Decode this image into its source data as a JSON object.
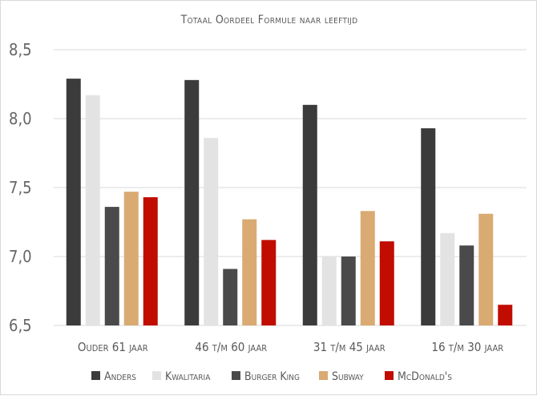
{
  "chart_data": {
    "type": "bar",
    "title": "Totaal Oordeel Formule naar leeftijd",
    "xlabel": "",
    "ylabel": "",
    "ylim": [
      6.5,
      8.5
    ],
    "yticks": [
      "6,5",
      "7,0",
      "7,5",
      "8,0",
      "8,5"
    ],
    "ytick_values": [
      6.5,
      7.0,
      7.5,
      8.0,
      8.5
    ],
    "grid": true,
    "legend_position": "bottom",
    "categories": [
      "Ouder 61 jaar",
      "46 t/m 60 jaar",
      "31 t/m 45 jaar",
      "16 t/m 30 jaar"
    ],
    "series": [
      {
        "name": "Anders",
        "color": "#3b3b3b",
        "values": [
          8.29,
          8.28,
          8.1,
          7.93
        ]
      },
      {
        "name": "Kwalitaria",
        "color": "#e3e3e3",
        "values": [
          8.17,
          7.86,
          7.0,
          7.17
        ]
      },
      {
        "name": "Burger King",
        "color": "#4a4a4a",
        "values": [
          7.36,
          6.91,
          7.0,
          7.08
        ]
      },
      {
        "name": "Subway",
        "color": "#d9aa72",
        "values": [
          7.47,
          7.27,
          7.33,
          7.31
        ]
      },
      {
        "name": "McDonald's",
        "color": "#c00d00",
        "values": [
          7.43,
          7.12,
          7.11,
          6.65
        ]
      }
    ]
  }
}
